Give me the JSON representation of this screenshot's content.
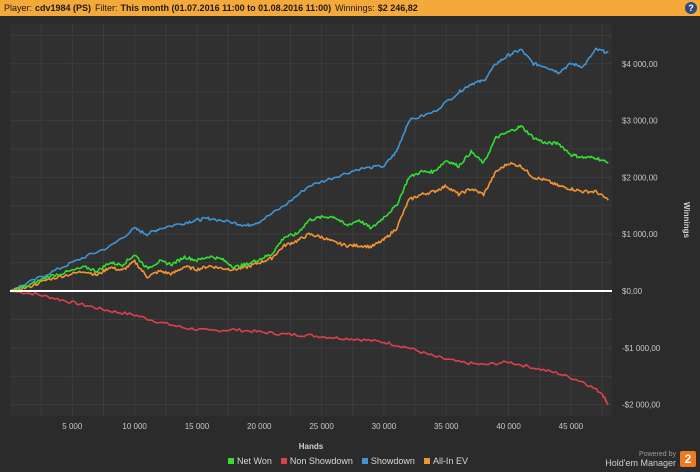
{
  "header": {
    "player_label": "Player:",
    "player_value": "cdv1984 (PS)",
    "filter_label": "Filter:",
    "filter_value": "This month (01.07.2016 11:00 to 01.08.2016 11:00)",
    "winnings_label": "Winnings:",
    "winnings_value": "$2 246,82",
    "help_label": "?"
  },
  "branding": {
    "powered_by": "Powered by",
    "product": "Hold'em Manager",
    "badge": "2"
  },
  "colors": {
    "net_won": "#33dd33",
    "non_showdown": "#d9424a",
    "showdown": "#3f94d4",
    "all_in_ev": "#f19432",
    "zero_line": "#ffffff",
    "background": "#2b2b2b",
    "header": "#f4a93a"
  },
  "chart_data": {
    "type": "line",
    "xlabel": "Hands",
    "ylabel": "Winnings",
    "xlim": [
      0,
      48300
    ],
    "ylim": [
      -2200,
      4700
    ],
    "x_ticks": [
      5000,
      10000,
      15000,
      20000,
      25000,
      30000,
      35000,
      40000,
      45000
    ],
    "x_tick_labels": [
      "5 000",
      "10 000",
      "15 000",
      "20 000",
      "25 000",
      "30 000",
      "35 000",
      "40 000",
      "45 000"
    ],
    "y_ticks": [
      -2000,
      -1000,
      0,
      1000,
      2000,
      3000,
      4000
    ],
    "y_tick_labels": [
      "-$2 000,00",
      "-$1 000,00",
      "$0,00",
      "$1 000,00",
      "$2 000,00",
      "$3 000,00",
      "$4 000,00"
    ],
    "grid": true,
    "legend_position": "bottom",
    "series": [
      {
        "name": "Net Won",
        "color": "#33dd33",
        "points": [
          [
            0,
            0
          ],
          [
            1500,
            100
          ],
          [
            3000,
            250
          ],
          [
            4500,
            330
          ],
          [
            6000,
            420
          ],
          [
            7000,
            350
          ],
          [
            8000,
            500
          ],
          [
            9000,
            460
          ],
          [
            10000,
            640
          ],
          [
            11000,
            400
          ],
          [
            12000,
            520
          ],
          [
            13000,
            470
          ],
          [
            14000,
            600
          ],
          [
            15000,
            540
          ],
          [
            16000,
            610
          ],
          [
            17000,
            560
          ],
          [
            18000,
            420
          ],
          [
            19000,
            470
          ],
          [
            20000,
            560
          ],
          [
            21000,
            650
          ],
          [
            22000,
            950
          ],
          [
            23000,
            1000
          ],
          [
            24000,
            1250
          ],
          [
            25000,
            1300
          ],
          [
            26000,
            1310
          ],
          [
            27000,
            1150
          ],
          [
            28000,
            1250
          ],
          [
            29000,
            1100
          ],
          [
            30000,
            1300
          ],
          [
            31000,
            1500
          ],
          [
            32000,
            2000
          ],
          [
            33000,
            2100
          ],
          [
            34000,
            2100
          ],
          [
            35000,
            2300
          ],
          [
            36000,
            2200
          ],
          [
            37000,
            2450
          ],
          [
            38000,
            2250
          ],
          [
            39000,
            2700
          ],
          [
            40000,
            2800
          ],
          [
            41000,
            2900
          ],
          [
            42000,
            2700
          ],
          [
            43000,
            2600
          ],
          [
            44000,
            2600
          ],
          [
            45000,
            2400
          ],
          [
            46000,
            2350
          ],
          [
            47000,
            2350
          ],
          [
            48000,
            2250
          ]
        ]
      },
      {
        "name": "Non Showdown",
        "color": "#d9424a",
        "points": [
          [
            0,
            0
          ],
          [
            2000,
            -50
          ],
          [
            4000,
            -150
          ],
          [
            6000,
            -250
          ],
          [
            8000,
            -350
          ],
          [
            10000,
            -420
          ],
          [
            12000,
            -550
          ],
          [
            14000,
            -650
          ],
          [
            16000,
            -700
          ],
          [
            18000,
            -680
          ],
          [
            20000,
            -720
          ],
          [
            22000,
            -760
          ],
          [
            24000,
            -780
          ],
          [
            26000,
            -820
          ],
          [
            28000,
            -850
          ],
          [
            30000,
            -900
          ],
          [
            32000,
            -1000
          ],
          [
            34000,
            -1150
          ],
          [
            36000,
            -1250
          ],
          [
            38000,
            -1300
          ],
          [
            40000,
            -1250
          ],
          [
            42000,
            -1350
          ],
          [
            44000,
            -1450
          ],
          [
            46000,
            -1600
          ],
          [
            47500,
            -1800
          ],
          [
            48000,
            -2000
          ]
        ]
      },
      {
        "name": "Showdown",
        "color": "#3f94d4",
        "points": [
          [
            0,
            0
          ],
          [
            2000,
            200
          ],
          [
            4000,
            400
          ],
          [
            6000,
            600
          ],
          [
            8000,
            780
          ],
          [
            10000,
            1100
          ],
          [
            11000,
            1000
          ],
          [
            12000,
            1100
          ],
          [
            14000,
            1200
          ],
          [
            15000,
            1250
          ],
          [
            16000,
            1280
          ],
          [
            18000,
            1200
          ],
          [
            19000,
            1150
          ],
          [
            20000,
            1220
          ],
          [
            22000,
            1500
          ],
          [
            24000,
            1850
          ],
          [
            26000,
            2000
          ],
          [
            28000,
            2150
          ],
          [
            30000,
            2200
          ],
          [
            31000,
            2450
          ],
          [
            32000,
            3000
          ],
          [
            34000,
            3150
          ],
          [
            36000,
            3500
          ],
          [
            37000,
            3650
          ],
          [
            38000,
            3700
          ],
          [
            39000,
            4000
          ],
          [
            40000,
            4150
          ],
          [
            41000,
            4250
          ],
          [
            42000,
            4000
          ],
          [
            43000,
            3950
          ],
          [
            44000,
            3850
          ],
          [
            45000,
            4000
          ],
          [
            46000,
            3950
          ],
          [
            47000,
            4250
          ],
          [
            48000,
            4200
          ]
        ]
      },
      {
        "name": "All-In EV",
        "color": "#f19432",
        "points": [
          [
            0,
            0
          ],
          [
            1500,
            70
          ],
          [
            3000,
            200
          ],
          [
            4500,
            280
          ],
          [
            6000,
            350
          ],
          [
            7000,
            280
          ],
          [
            8000,
            420
          ],
          [
            9000,
            360
          ],
          [
            10000,
            520
          ],
          [
            11000,
            250
          ],
          [
            12000,
            350
          ],
          [
            13000,
            300
          ],
          [
            14000,
            430
          ],
          [
            15000,
            380
          ],
          [
            16000,
            440
          ],
          [
            17000,
            400
          ],
          [
            18000,
            380
          ],
          [
            19000,
            420
          ],
          [
            20000,
            500
          ],
          [
            21000,
            580
          ],
          [
            22000,
            800
          ],
          [
            23000,
            880
          ],
          [
            24000,
            1000
          ],
          [
            25000,
            950
          ],
          [
            26000,
            860
          ],
          [
            27000,
            800
          ],
          [
            28000,
            800
          ],
          [
            29000,
            780
          ],
          [
            30000,
            900
          ],
          [
            31000,
            1100
          ],
          [
            32000,
            1600
          ],
          [
            33000,
            1700
          ],
          [
            34000,
            1750
          ],
          [
            35000,
            1850
          ],
          [
            36000,
            1700
          ],
          [
            37000,
            1800
          ],
          [
            38000,
            1700
          ],
          [
            39000,
            2100
          ],
          [
            40000,
            2250
          ],
          [
            41000,
            2200
          ],
          [
            42000,
            2000
          ],
          [
            43000,
            1950
          ],
          [
            44000,
            1850
          ],
          [
            45000,
            1800
          ],
          [
            46000,
            1750
          ],
          [
            47000,
            1750
          ],
          [
            48000,
            1600
          ]
        ]
      }
    ]
  }
}
